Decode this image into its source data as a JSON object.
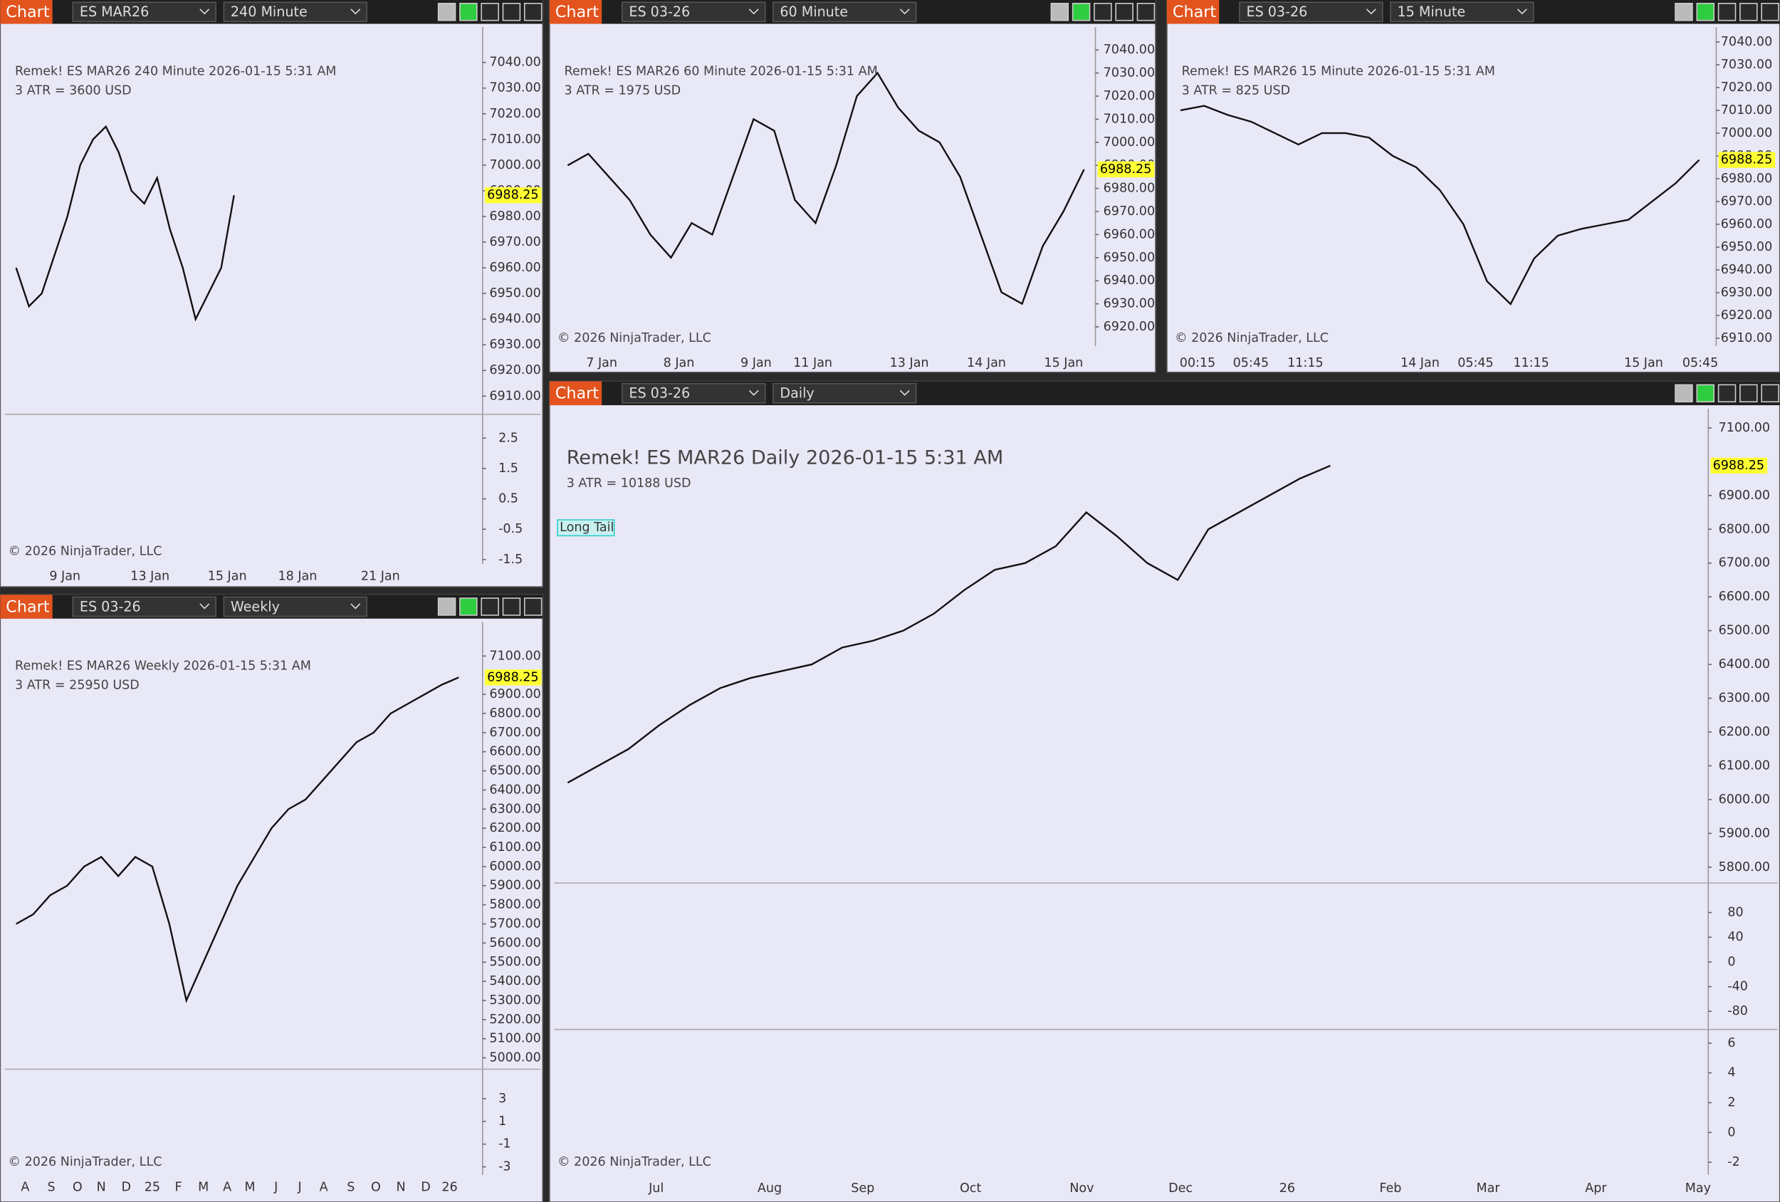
{
  "windows": [
    {
      "tab": "Chart",
      "instrument": "ES MAR26",
      "interval": "240 Minute",
      "header": "Remek!  ES MAR26  240 Minute  2026-01-15 5:31 AM",
      "atr": "3 ATR = 3600 USD",
      "copyright": "© 2026 NinjaTrader, LLC",
      "last_price": 6988.25,
      "ylim": [
        6910,
        7040
      ],
      "yticks": [
        {
          "value": 7040,
          "label": "7040.00"
        },
        {
          "value": 7030,
          "label": "7030.00"
        },
        {
          "value": 7020,
          "label": "7020.00"
        },
        {
          "value": 7010,
          "label": "7010.00"
        },
        {
          "value": 7000,
          "label": "7000.00"
        },
        {
          "value": 6990,
          "label": "6990.00"
        },
        {
          "value": 6980,
          "label": "6980.00"
        },
        {
          "value": 6970,
          "label": "6970.00"
        },
        {
          "value": 6960,
          "label": "6960.00"
        },
        {
          "value": 6950,
          "label": "6950.00"
        },
        {
          "value": 6940,
          "label": "6940.00"
        },
        {
          "value": 6930,
          "label": "6930.00"
        },
        {
          "value": 6920,
          "label": "6920.00"
        },
        {
          "value": 6910,
          "label": "6910.00"
        }
      ],
      "closes": [
        6960,
        6945,
        6950,
        6965,
        6980,
        7000,
        7010,
        7015,
        7005,
        6990,
        6985,
        6995,
        6975,
        6960,
        6940,
        6950,
        6960,
        6988.25
      ],
      "indicators": [
        {
          "ylim": [
            -1.5,
            2.5
          ],
          "yticks": [
            2.5,
            1.5,
            0.5,
            -0.5,
            -1.5
          ]
        }
      ],
      "xlabels": [
        "9 Jan",
        "13 Jan",
        "15 Jan",
        "18 Jan",
        "21 Jan"
      ]
    },
    {
      "tab": "Chart",
      "instrument": "ES 03-26",
      "interval": "60 Minute",
      "header": "Remek!  ES MAR26  60 Minute  2026-01-15 5:31 AM",
      "atr": "3 ATR = 1975 USD",
      "copyright": "© 2026 NinjaTrader, LLC",
      "last_price": 6988.25,
      "ylim": [
        6920,
        7040
      ],
      "yticks": [
        {
          "value": 7040,
          "label": "7040.00"
        },
        {
          "value": 7030,
          "label": "7030.00"
        },
        {
          "value": 7020,
          "label": "7020.00"
        },
        {
          "value": 7010,
          "label": "7010.00"
        },
        {
          "value": 7000,
          "label": "7000.00"
        },
        {
          "value": 6990,
          "label": "6990.00"
        },
        {
          "value": 6980,
          "label": "6980.00"
        },
        {
          "value": 6970,
          "label": "6970.00"
        },
        {
          "value": 6960,
          "label": "6960.00"
        },
        {
          "value": 6950,
          "label": "6950.00"
        },
        {
          "value": 6940,
          "label": "6940.00"
        },
        {
          "value": 6930,
          "label": "6930.00"
        },
        {
          "value": 6920,
          "label": "6920.00"
        }
      ],
      "closes": [
        6990,
        6995,
        6985,
        6975,
        6960,
        6950,
        6965,
        6960,
        6985,
        7010,
        7005,
        6975,
        6965,
        6990,
        7020,
        7030,
        7015,
        7005,
        7000,
        6985,
        6960,
        6935,
        6930,
        6955,
        6970,
        6988.25
      ],
      "indicators": [],
      "xlabels": [
        "7 Jan",
        "8 Jan",
        "9 Jan",
        "11 Jan",
        "13 Jan",
        "14 Jan",
        "15 Jan"
      ]
    },
    {
      "tab": "Chart",
      "instrument": "ES 03-26",
      "interval": "15 Minute",
      "header": "Remek!  ES MAR26  15 Minute  2026-01-15 5:31 AM",
      "atr": "3 ATR = 825 USD",
      "copyright": "© 2026 NinjaTrader, LLC",
      "last_price": 6988.25,
      "ylim": [
        6910,
        7040
      ],
      "yticks": [
        {
          "value": 7040,
          "label": "7040.00"
        },
        {
          "value": 7030,
          "label": "7030.00"
        },
        {
          "value": 7020,
          "label": "7020.00"
        },
        {
          "value": 7010,
          "label": "7010.00"
        },
        {
          "value": 7000,
          "label": "7000.00"
        },
        {
          "value": 6990,
          "label": "6990.00"
        },
        {
          "value": 6980,
          "label": "6980.00"
        },
        {
          "value": 6970,
          "label": "6970.00"
        },
        {
          "value": 6960,
          "label": "6960.00"
        },
        {
          "value": 6950,
          "label": "6950.00"
        },
        {
          "value": 6940,
          "label": "6940.00"
        },
        {
          "value": 6930,
          "label": "6930.00"
        },
        {
          "value": 6920,
          "label": "6920.00"
        },
        {
          "value": 6910,
          "label": "6910.00"
        }
      ],
      "closes": [
        7010,
        7012,
        7008,
        7005,
        7000,
        6995,
        7000,
        7000,
        6998,
        6990,
        6985,
        6975,
        6960,
        6935,
        6925,
        6945,
        6955,
        6958,
        6960,
        6962,
        6970,
        6978,
        6988.25
      ],
      "indicators": [],
      "xlabels": [
        "00:15",
        "05:45",
        "11:15",
        "14 Jan",
        "05:45",
        "11:15",
        "15 Jan",
        "05:45"
      ]
    },
    {
      "tab": "Chart",
      "instrument": "ES 03-26",
      "interval": "Weekly",
      "header": "Remek!  ES MAR26  Weekly  2026-01-15 5:31 AM",
      "atr": "3 ATR = 25950 USD",
      "copyright": "© 2026 NinjaTrader, LLC",
      "last_price": 6988.25,
      "ylim": [
        5000,
        7100
      ],
      "yticks": [
        {
          "value": 7100,
          "label": "7100.00"
        },
        {
          "value": 6900,
          "label": "6900.00"
        },
        {
          "value": 6800,
          "label": "6800.00"
        },
        {
          "value": 6700,
          "label": "6700.00"
        },
        {
          "value": 6600,
          "label": "6600.00"
        },
        {
          "value": 6500,
          "label": "6500.00"
        },
        {
          "value": 6400,
          "label": "6400.00"
        },
        {
          "value": 6300,
          "label": "6300.00"
        },
        {
          "value": 6200,
          "label": "6200.00"
        },
        {
          "value": 6100,
          "label": "6100.00"
        },
        {
          "value": 6000,
          "label": "6000.00"
        },
        {
          "value": 5900,
          "label": "5900.00"
        },
        {
          "value": 5800,
          "label": "5800.00"
        },
        {
          "value": 5700,
          "label": "5700.00"
        },
        {
          "value": 5600,
          "label": "5600.00"
        },
        {
          "value": 5500,
          "label": "5500.00"
        },
        {
          "value": 5400,
          "label": "5400.00"
        },
        {
          "value": 5300,
          "label": "5300.00"
        },
        {
          "value": 5200,
          "label": "5200.00"
        },
        {
          "value": 5100,
          "label": "5100.00"
        },
        {
          "value": 5000,
          "label": "5000.00"
        }
      ],
      "closes": [
        5700,
        5750,
        5850,
        5900,
        6000,
        6050,
        5950,
        6050,
        6000,
        5700,
        5300,
        5500,
        5700,
        5900,
        6050,
        6200,
        6300,
        6350,
        6450,
        6550,
        6650,
        6700,
        6800,
        6850,
        6900,
        6950,
        6988.25
      ],
      "indicators": [
        {
          "ylim": [
            -3,
            3
          ],
          "yticks": [
            3,
            1,
            -1,
            -3
          ]
        }
      ],
      "xlabels": [
        "A",
        "S",
        "O",
        "N",
        "D",
        "25",
        "F",
        "M",
        "A",
        "M",
        "J",
        "J",
        "A",
        "S",
        "O",
        "N",
        "D",
        "26"
      ]
    },
    {
      "tab": "Chart",
      "instrument": "ES 03-26",
      "interval": "Daily",
      "header": "Remek!  ES MAR26  Daily  2026-01-15 5:31 AM",
      "atr": "3 ATR = 10188 USD",
      "copyright": "© 2026 NinjaTrader, LLC",
      "last_price": 6988.25,
      "annotation": "Long Tail",
      "ylim": [
        5800,
        7100
      ],
      "yticks": [
        {
          "value": 7100,
          "label": "7100.00"
        },
        {
          "value": 6900,
          "label": "6900.00"
        },
        {
          "value": 6800,
          "label": "6800.00"
        },
        {
          "value": 6700,
          "label": "6700.00"
        },
        {
          "value": 6600,
          "label": "6600.00"
        },
        {
          "value": 6500,
          "label": "6500.00"
        },
        {
          "value": 6400,
          "label": "6400.00"
        },
        {
          "value": 6300,
          "label": "6300.00"
        },
        {
          "value": 6200,
          "label": "6200.00"
        },
        {
          "value": 6100,
          "label": "6100.00"
        },
        {
          "value": 6000,
          "label": "6000.00"
        },
        {
          "value": 5900,
          "label": "5900.00"
        },
        {
          "value": 5800,
          "label": "5800.00"
        }
      ],
      "closes": [
        6050,
        6100,
        6150,
        6220,
        6280,
        6330,
        6360,
        6380,
        6400,
        6450,
        6470,
        6500,
        6550,
        6620,
        6680,
        6700,
        6750,
        6850,
        6780,
        6700,
        6650,
        6800,
        6850,
        6900,
        6950,
        6988.25
      ],
      "indicators": [
        {
          "ylim": [
            -80,
            80
          ],
          "yticks": [
            80,
            40,
            0,
            -40,
            -80
          ]
        },
        {
          "ylim": [
            -2,
            6
          ],
          "yticks": [
            6,
            4,
            2,
            0,
            -2
          ]
        }
      ],
      "xlabels": [
        "Jul",
        "Aug",
        "Sep",
        "Oct",
        "Nov",
        "Dec",
        "26",
        "Feb",
        "Mar",
        "Apr",
        "May"
      ]
    }
  ]
}
